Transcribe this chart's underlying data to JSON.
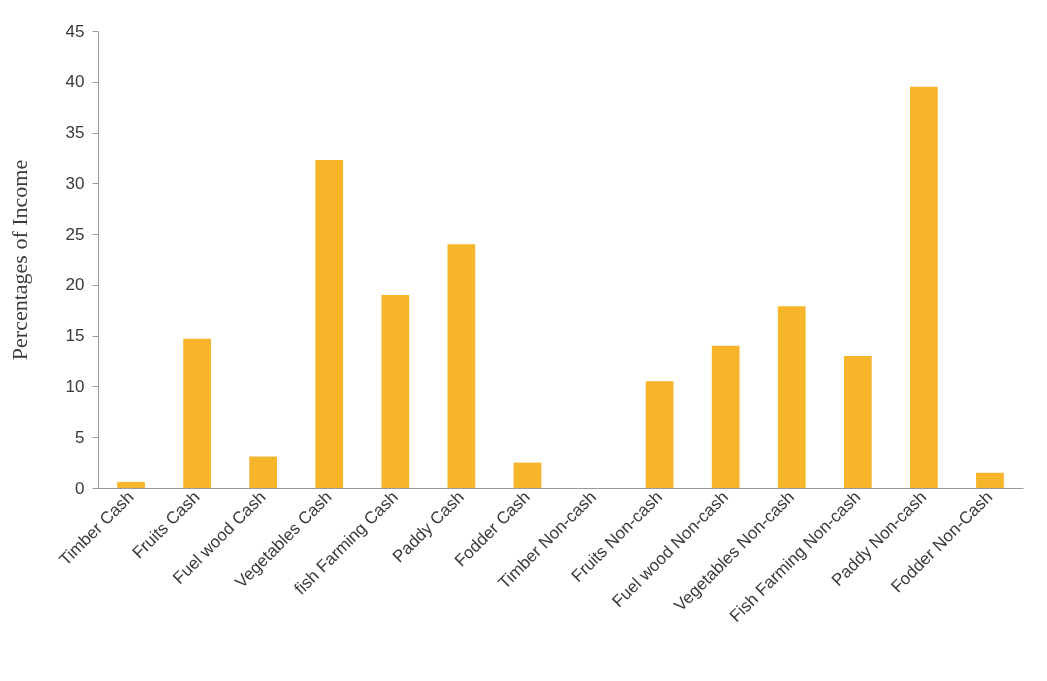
{
  "chart_data": {
    "type": "bar",
    "ylabel": "Percentages of Income",
    "categories": [
      "Timber Cash",
      "Fruits Cash",
      "Fuel wood Cash",
      "Vegetables Cash",
      "fish Farming Cash",
      "Paddy Cash",
      "Fodder Cash",
      "Timber Non-cash",
      "Fruits Non-cash",
      "Fuel wood Non-cash",
      "Vegetables Non-cash",
      "Fish Farming Non-cash",
      "Paddy Non-cash",
      "Fodder Non-Cash"
    ],
    "values": [
      0.6,
      14.7,
      3.1,
      32.3,
      19.0,
      24.0,
      2.5,
      0,
      10.5,
      14.0,
      17.9,
      13.0,
      39.5,
      1.5
    ],
    "color": "#f6b52b",
    "ylim": [
      0,
      45
    ],
    "yticks": [
      0,
      5,
      10,
      15,
      20,
      25,
      30,
      35,
      40,
      45
    ]
  }
}
